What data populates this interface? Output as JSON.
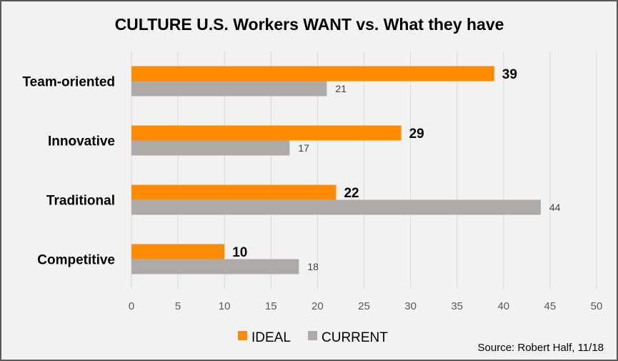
{
  "chart_data": {
    "type": "bar",
    "orientation": "horizontal",
    "title": "CULTURE U.S. Workers WANT vs. What they have",
    "categories": [
      "Team-oriented",
      "Innovative",
      "Traditional",
      "Competitive"
    ],
    "series": [
      {
        "name": "IDEAL",
        "values": [
          39,
          29,
          22,
          10
        ],
        "color": "#ff8c00"
      },
      {
        "name": "CURRENT",
        "values": [
          21,
          17,
          44,
          18
        ],
        "color": "#aeaaaa"
      }
    ],
    "xlim": [
      0,
      50
    ],
    "xticks": [
      "0",
      "5",
      "10",
      "15",
      "20",
      "25",
      "30",
      "35",
      "40",
      "45",
      "50"
    ],
    "grid": true,
    "legend": "bottom"
  },
  "source": "Source:  Robert Half, 11/18"
}
